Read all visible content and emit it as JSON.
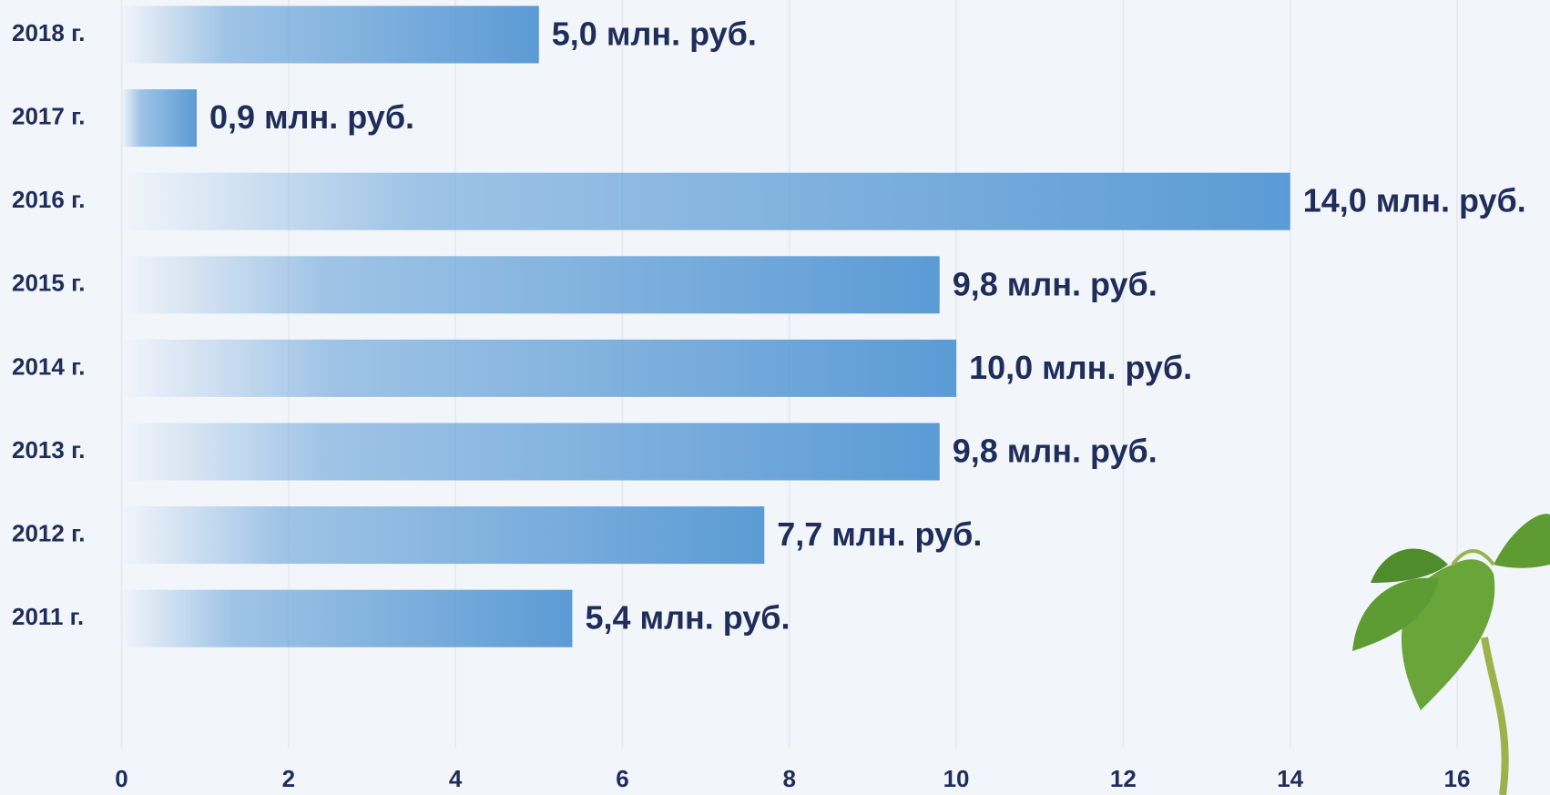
{
  "chart_data": {
    "type": "bar",
    "orientation": "horizontal",
    "categories": [
      "2018 г.",
      "2017 г.",
      "2016 г.",
      "2015 г.",
      "2014 г.",
      "2013 г.",
      "2012 г.",
      "2011 г."
    ],
    "values": [
      5.0,
      0.9,
      14.0,
      9.8,
      10.0,
      9.8,
      7.7,
      5.4
    ],
    "value_labels": [
      "5,0 млн. руб.",
      "0,9 млн. руб.",
      "14,0 млн. руб.",
      "9,8 млн. руб.",
      "10,0 млн. руб.",
      "9,8 млн. руб.",
      "7,7 млн. руб.",
      "5,4 млн. руб."
    ],
    "color": "#5b9bd5",
    "xlim": [
      0,
      16
    ],
    "xticks": [
      0,
      2,
      4,
      6,
      8,
      10,
      12,
      14,
      16
    ],
    "grid": true
  }
}
